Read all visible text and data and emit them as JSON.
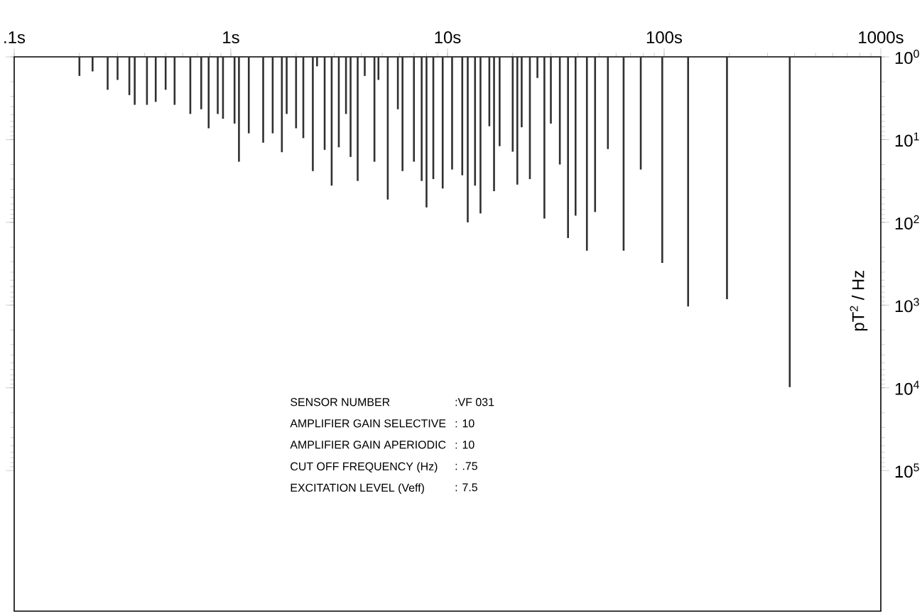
{
  "chart_data": {
    "type": "bar",
    "color": "#303030",
    "x": [
      0.2,
      0.23,
      0.27,
      0.3,
      0.34,
      0.36,
      0.41,
      0.45,
      0.5,
      0.55,
      0.65,
      0.73,
      0.79,
      0.87,
      0.92,
      1.04,
      1.09,
      1.21,
      1.41,
      1.56,
      1.72,
      1.81,
      2.0,
      2.16,
      2.39,
      2.5,
      2.71,
      2.92,
      3.15,
      3.4,
      3.57,
      3.85,
      4.15,
      4.6,
      4.8,
      5.3,
      5.9,
      6.2,
      7.0,
      7.6,
      8.0,
      8.6,
      9.5,
      10.5,
      11.7,
      12.4,
      13.4,
      14.2,
      15.6,
      16.4,
      17.4,
      20,
      21,
      22,
      24,
      26,
      28,
      30,
      33,
      36,
      39,
      44,
      48,
      55,
      65,
      78,
      98,
      129,
      195,
      380
    ],
    "values": [
      1.7,
      1.5,
      2.5,
      1.9,
      2.9,
      3.8,
      3.8,
      3.5,
      2.5,
      3.8,
      4.9,
      4.3,
      7.3,
      4.9,
      5.6,
      6.4,
      18.5,
      8.4,
      10.9,
      8.4,
      14.2,
      4.9,
      7.3,
      9.6,
      24,
      1.3,
      13.3,
      36,
      12.4,
      4.9,
      16.2,
      31.6,
      1.7,
      18.5,
      1.9,
      53,
      4.3,
      24,
      18.5,
      31.6,
      66,
      30,
      39,
      23,
      27,
      100,
      36,
      78,
      6.9,
      42,
      12,
      14,
      35,
      7.1,
      30,
      1.8,
      90,
      6.4,
      20,
      155,
      83,
      220,
      75,
      13,
      220,
      23,
      310,
      1040,
      850,
      9800
    ],
    "xlim": [
      0.1,
      1000
    ],
    "ylim": [
      5000000,
      1
    ],
    "log": "xy",
    "xticks": [
      {
        "value": 0.1,
        "label": ".1s"
      },
      {
        "value": 1,
        "label": "1s"
      },
      {
        "value": 10,
        "label": "10s"
      },
      {
        "value": 100,
        "label": "100s"
      },
      {
        "value": 1000,
        "label": "1000s"
      }
    ],
    "yticks": [
      {
        "value": 1,
        "label": "10$^{0}$"
      },
      {
        "value": 10,
        "label": "10$^{1}$"
      },
      {
        "value": 100,
        "label": "10$^{2}$"
      },
      {
        "value": 1000,
        "label": "10$^{3}$"
      },
      {
        "value": 10000,
        "label": "10$^{4}$"
      },
      {
        "value": 100000,
        "label": "10$^{5}$"
      }
    ],
    "ylabel": "pT$^{2}$ / Hz",
    "annotations": [
      "SENSOR NUMBER",
      ":VF 031",
      "AMPLIFIER GAIN SELECTIVE",
      ": 10",
      "AMPLIFIER GAIN APERIODIC",
      ": 10",
      "CUT OFF FREQUENCY (Hz)",
      ": .75",
      "EXCITATION LEVEL (Veff)",
      ": 7.5"
    ]
  }
}
